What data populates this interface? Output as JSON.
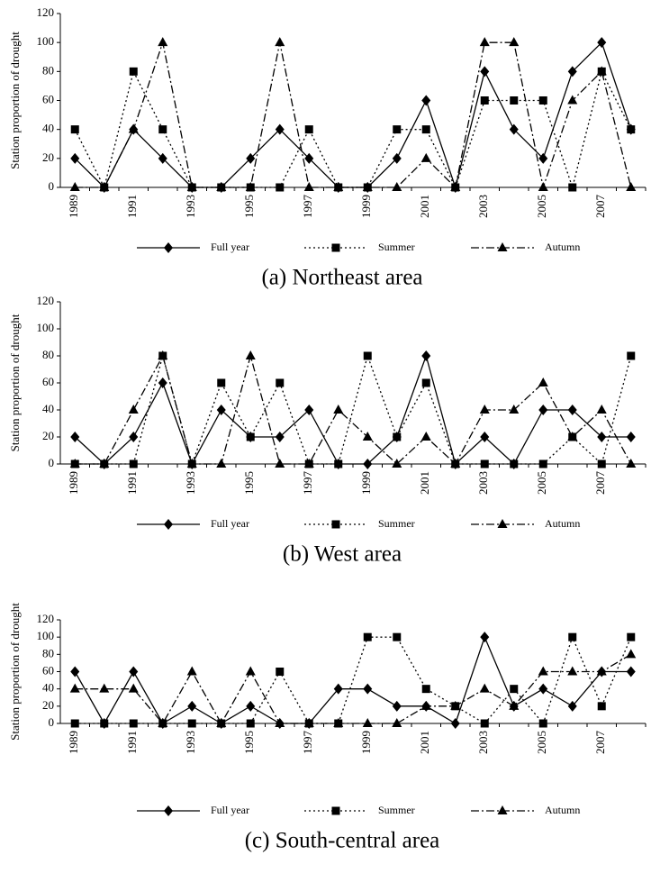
{
  "chart_data": [
    {
      "type": "line",
      "title": "(a) Northeast area",
      "y_label": "Station proportion of drought",
      "categories": [
        "1989",
        null,
        "1991",
        null,
        "1993",
        null,
        "1995",
        null,
        "1997",
        null,
        "1999",
        null,
        "2001",
        null,
        "2003",
        null,
        "2005",
        null,
        "2007",
        null
      ],
      "ylim": [
        0,
        120
      ],
      "yticks": [
        0,
        20,
        40,
        60,
        80,
        100,
        120
      ],
      "grid": false,
      "series": [
        {
          "name": "Full year",
          "color": "#000000",
          "marker": "diamond",
          "line_style": "solid",
          "values": [
            20,
            0,
            40,
            20,
            0,
            0,
            20,
            40,
            20,
            0,
            0,
            20,
            60,
            0,
            80,
            40,
            20,
            80,
            100,
            40
          ]
        },
        {
          "name": "Summer",
          "color": "#000000",
          "marker": "square",
          "line_style": "dotted",
          "values": [
            40,
            0,
            80,
            40,
            0,
            0,
            0,
            0,
            40,
            0,
            0,
            40,
            40,
            0,
            60,
            60,
            60,
            0,
            80,
            40
          ]
        },
        {
          "name": "Autumn",
          "color": "#000000",
          "marker": "triangle",
          "line_style": "dashdot",
          "values": [
            0,
            0,
            40,
            100,
            0,
            0,
            0,
            100,
            0,
            0,
            0,
            0,
            20,
            0,
            100,
            100,
            0,
            60,
            80,
            0
          ]
        }
      ]
    },
    {
      "type": "line",
      "title": "(b) West area",
      "y_label": "Station proportion of drought",
      "categories": [
        "1989",
        null,
        "1991",
        null,
        "1993",
        null,
        "1995",
        null,
        "1997",
        null,
        "1999",
        null,
        "2001",
        null,
        "2003",
        null,
        "2005",
        null,
        "2007",
        null
      ],
      "ylim": [
        0,
        120
      ],
      "yticks": [
        0,
        20,
        40,
        60,
        80,
        100,
        120
      ],
      "grid": false,
      "series": [
        {
          "name": "Full year",
          "color": "#000000",
          "marker": "diamond",
          "line_style": "solid",
          "values": [
            20,
            0,
            20,
            60,
            0,
            40,
            20,
            20,
            40,
            0,
            0,
            20,
            80,
            0,
            20,
            0,
            40,
            40,
            20,
            20
          ]
        },
        {
          "name": "Summer",
          "color": "#000000",
          "marker": "square",
          "line_style": "dotted",
          "values": [
            0,
            0,
            0,
            80,
            0,
            60,
            20,
            60,
            0,
            0,
            80,
            20,
            60,
            0,
            0,
            0,
            0,
            20,
            0,
            80
          ]
        },
        {
          "name": "Autumn",
          "color": "#000000",
          "marker": "triangle",
          "line_style": "dashdot",
          "values": [
            0,
            0,
            40,
            80,
            0,
            0,
            80,
            0,
            0,
            40,
            20,
            0,
            20,
            0,
            40,
            40,
            60,
            20,
            40,
            0
          ]
        }
      ]
    },
    {
      "type": "line",
      "title": "(c) South-central area",
      "y_label": "Station proportion of drought",
      "categories": [
        "1989",
        null,
        "1991",
        null,
        "1993",
        null,
        "1995",
        null,
        "1997",
        null,
        "1999",
        null,
        "2001",
        null,
        "2003",
        null,
        "2005",
        null,
        "2007",
        null
      ],
      "ylim": [
        0,
        120
      ],
      "yticks": [
        0,
        20,
        40,
        60,
        80,
        100,
        120
      ],
      "grid": false,
      "series": [
        {
          "name": "Full year",
          "color": "#000000",
          "marker": "diamond",
          "line_style": "solid",
          "values": [
            60,
            0,
            60,
            0,
            20,
            0,
            20,
            0,
            0,
            40,
            40,
            20,
            20,
            0,
            100,
            20,
            40,
            20,
            60,
            60
          ]
        },
        {
          "name": "Summer",
          "color": "#000000",
          "marker": "square",
          "line_style": "dotted",
          "values": [
            0,
            0,
            0,
            0,
            0,
            0,
            0,
            60,
            0,
            0,
            100,
            100,
            40,
            20,
            0,
            40,
            0,
            100,
            20,
            100
          ]
        },
        {
          "name": "Autumn",
          "color": "#000000",
          "marker": "triangle",
          "line_style": "dashdot",
          "values": [
            40,
            40,
            40,
            0,
            60,
            0,
            60,
            0,
            0,
            0,
            0,
            0,
            20,
            20,
            40,
            20,
            60,
            60,
            60,
            80
          ]
        }
      ]
    }
  ]
}
